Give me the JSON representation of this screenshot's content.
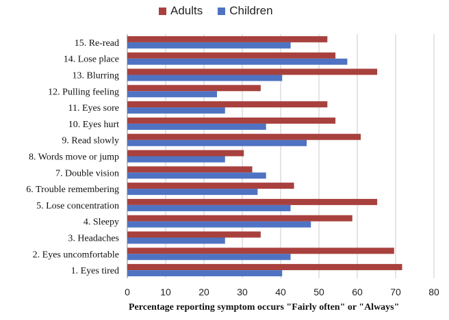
{
  "chart_data": {
    "type": "bar",
    "orientation": "horizontal",
    "title": "",
    "xlabel": "Percentage reporting symptom occurs \"Fairly often\" or \"Always\"",
    "ylabel": "",
    "xlim": [
      0,
      80
    ],
    "x_ticks": [
      "0",
      "10",
      "20",
      "30",
      "40",
      "50",
      "60",
      "70",
      "80"
    ],
    "grid": "vertical",
    "legend_position": "top",
    "categories": [
      "1. Eyes tired",
      "2. Eyes uncomfortable",
      "3. Headaches",
      "4. Sleepy",
      "5. Lose concentration",
      "6. Trouble remembering",
      "7. Double vision",
      "8. Words move or jump",
      "9. Read slowly",
      "10. Eyes hurt",
      "11. Eyes sore",
      "12. Pulling feeling",
      "13. Blurring",
      "14. Lose place",
      "15. Re-read"
    ],
    "series": [
      {
        "name": "Adults",
        "color": "#a8413e",
        "values": [
          71.7,
          69.6,
          34.8,
          58.7,
          65.2,
          43.5,
          32.6,
          30.4,
          60.9,
          54.3,
          52.2,
          34.8,
          65.2,
          54.3,
          52.2
        ]
      },
      {
        "name": "Children",
        "color": "#4f73c2",
        "values": [
          40.4,
          42.6,
          25.5,
          47.9,
          42.6,
          34.0,
          36.2,
          25.5,
          46.8,
          36.2,
          25.5,
          23.4,
          40.4,
          57.4,
          42.6
        ]
      }
    ]
  }
}
